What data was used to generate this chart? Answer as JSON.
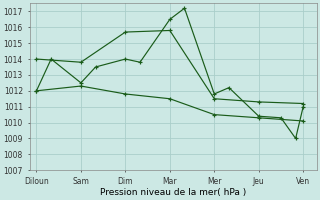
{
  "x_labels": [
    "Diloun",
    "Sam",
    "Dim",
    "Mar",
    "Mer",
    "Jeu",
    "Ven"
  ],
  "x_positions": [
    0,
    1,
    2,
    3,
    4,
    5,
    6
  ],
  "ylim": [
    1007,
    1017.5
  ],
  "yticks": [
    1007,
    1008,
    1009,
    1010,
    1011,
    1012,
    1013,
    1014,
    1015,
    1016,
    1017
  ],
  "xlabel": "Pression niveau de la mer( hPa )",
  "bg_color": "#cce8e4",
  "grid_color": "#aaceca",
  "line_color": "#1a5c1a",
  "series": [
    {
      "x": [
        0.0,
        0.33,
        1.0,
        1.33,
        2.0,
        2.33,
        3.0,
        3.33,
        4.0,
        4.33,
        5.0,
        5.5,
        5.83,
        6.0
      ],
      "y": [
        1012.0,
        1014.0,
        1012.5,
        1013.5,
        1014.0,
        1013.8,
        1016.5,
        1017.2,
        1011.8,
        1012.2,
        1010.4,
        1010.3,
        1009.0,
        1011.0
      ]
    },
    {
      "x": [
        0.0,
        1.0,
        2.0,
        3.0,
        4.0,
        5.0,
        6.0
      ],
      "y": [
        1014.0,
        1013.8,
        1015.7,
        1015.8,
        1011.5,
        1011.3,
        1011.2
      ]
    },
    {
      "x": [
        0.0,
        1.0,
        2.0,
        3.0,
        4.0,
        5.0,
        6.0
      ],
      "y": [
        1012.0,
        1012.3,
        1011.8,
        1011.5,
        1010.5,
        1010.3,
        1010.1
      ]
    }
  ]
}
